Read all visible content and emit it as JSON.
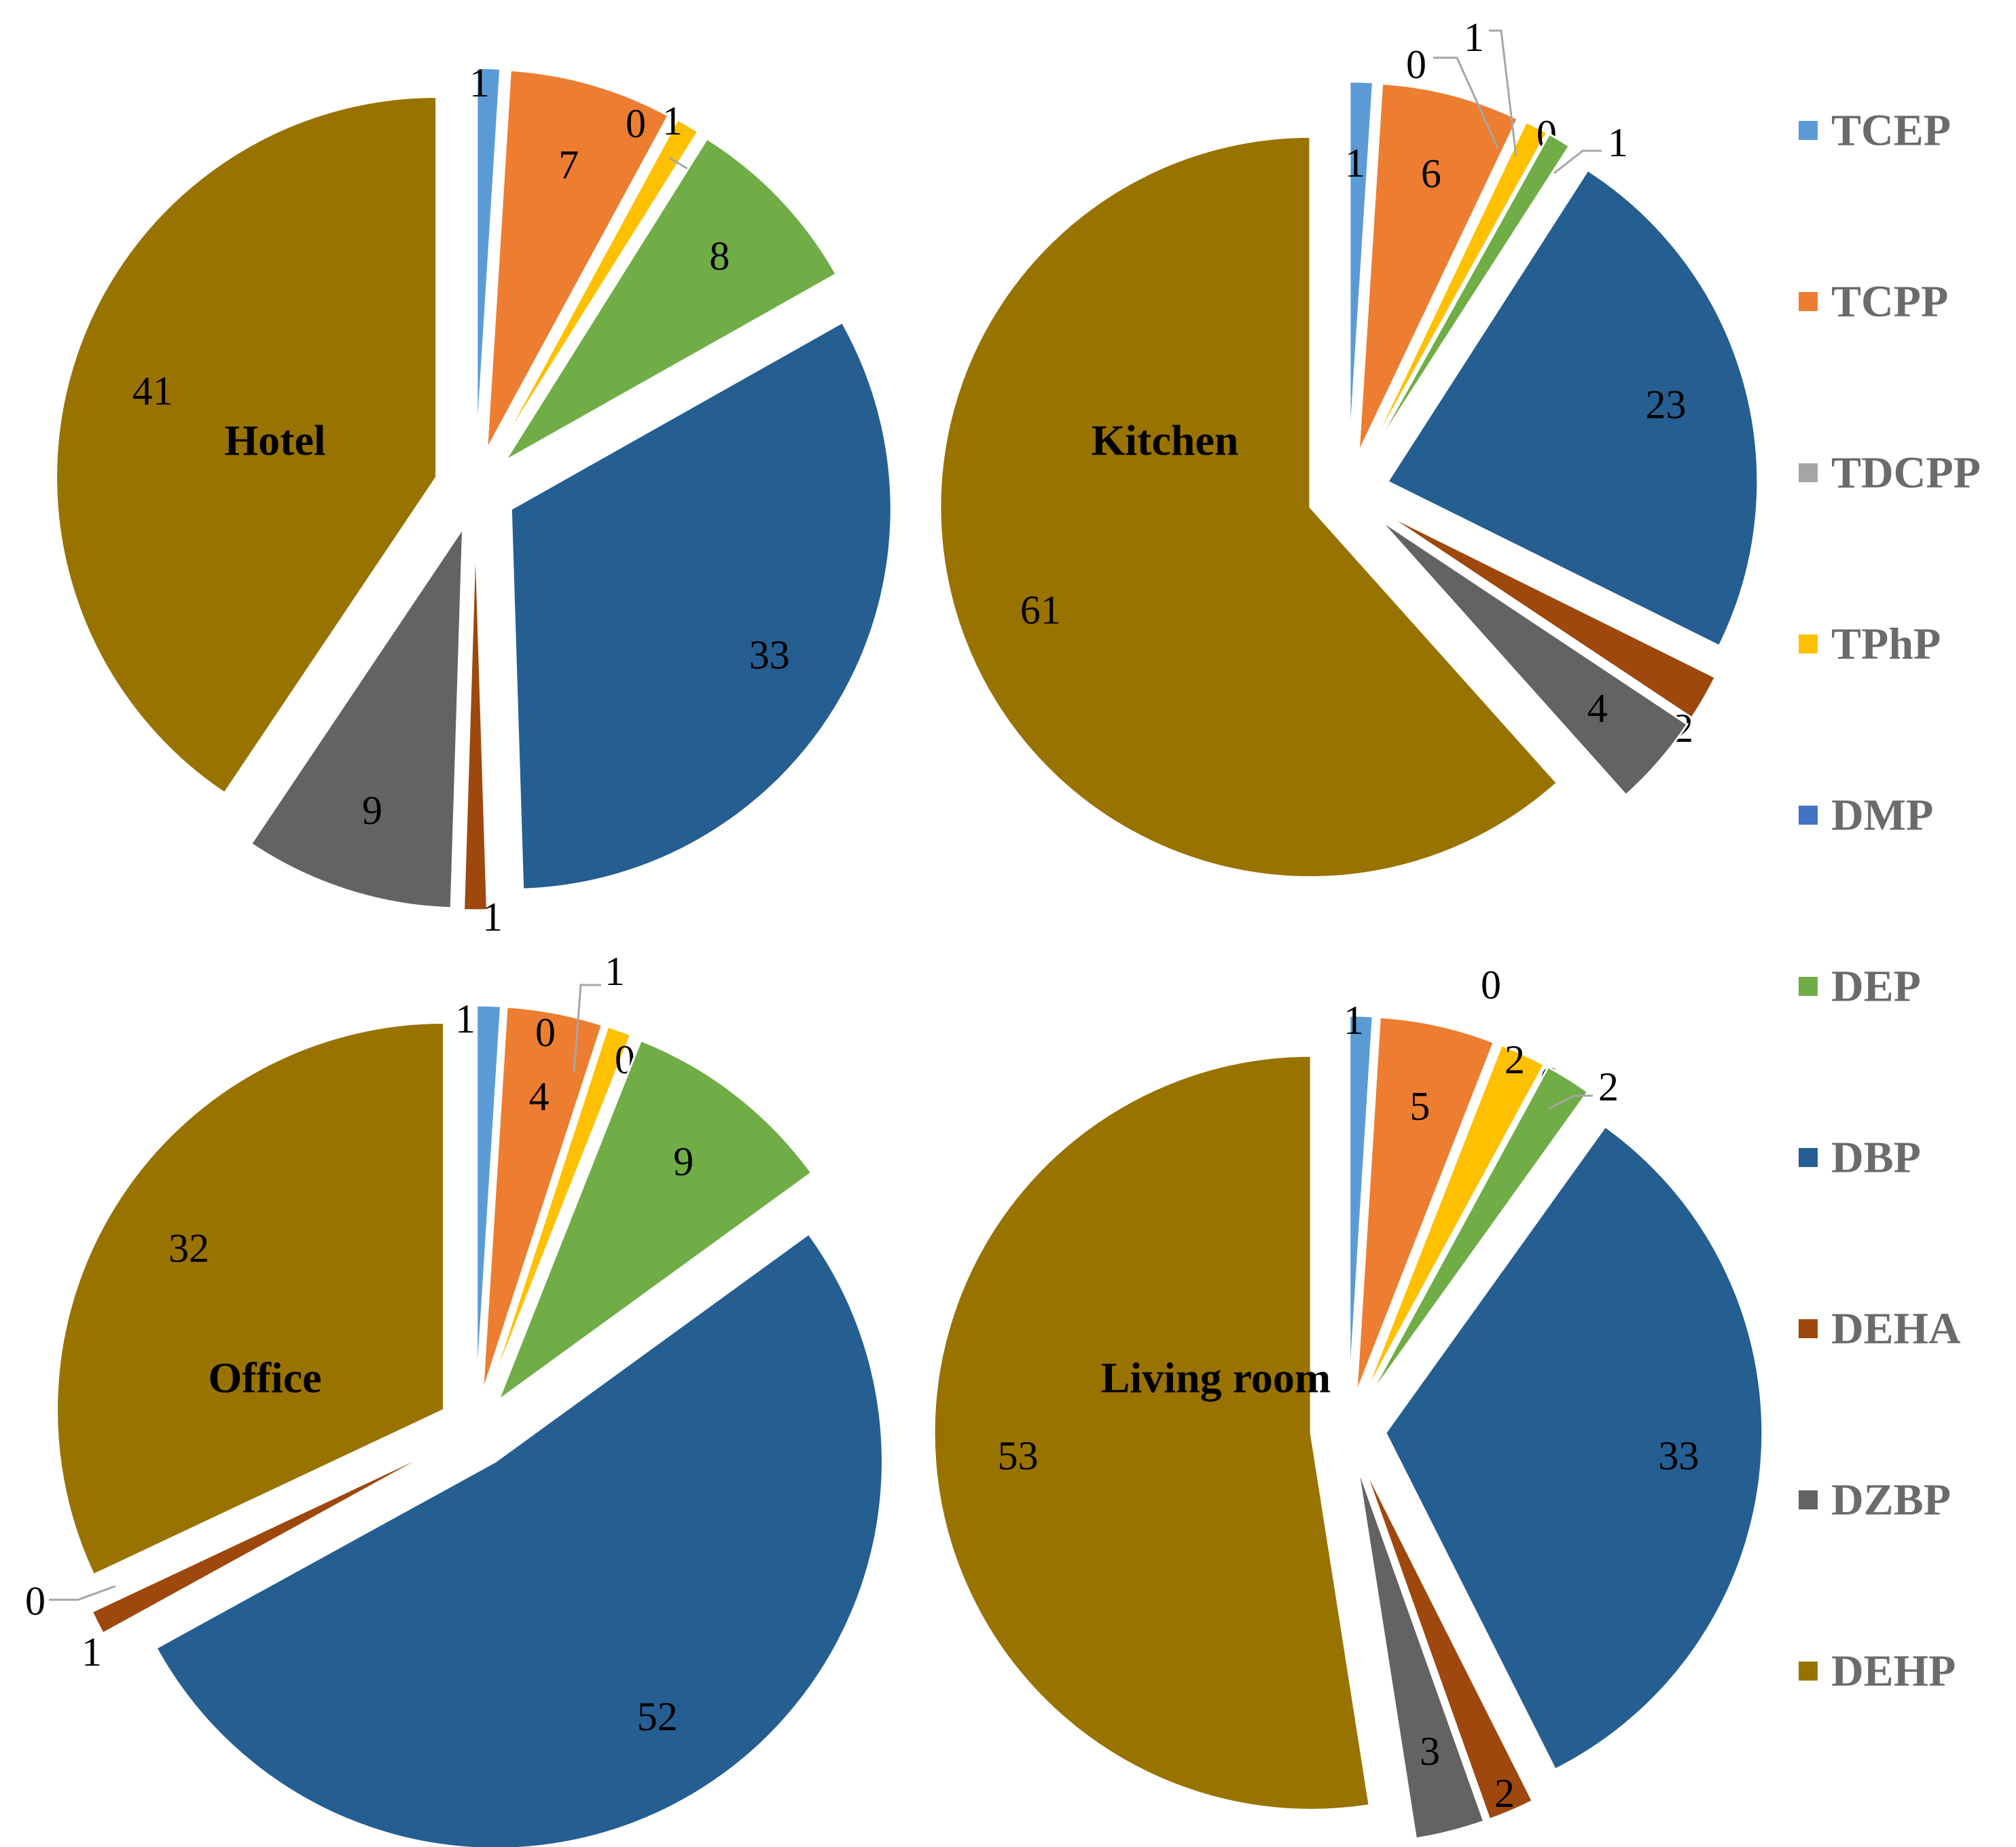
{
  "colors": {
    "TCEP": "#5b9bd5",
    "TCPP": "#ed7d31",
    "TDCPP": "#a5a5a5",
    "TPhP": "#ffc000",
    "DMP": "#4472c4",
    "DEP": "#70ad47",
    "DBP": "#255e91",
    "DEHA": "#9e480e",
    "DZBP": "#636363",
    "DEHP": "#997300"
  },
  "legend": [
    "TCEP",
    "TCPP",
    "TDCPP",
    "TPhP",
    "DMP",
    "DEP",
    "DBP",
    "DEHA",
    "DZBP",
    "DEHP"
  ],
  "chart_data": [
    {
      "type": "pie",
      "title": "Hotel",
      "slices": [
        {
          "name": "TCEP",
          "value": 1,
          "label": "1"
        },
        {
          "name": "TCPP",
          "value": 7,
          "label": "7"
        },
        {
          "name": "TDCPP",
          "value": 0,
          "label": "0"
        },
        {
          "name": "TPhP",
          "value": 1,
          "label": "1"
        },
        {
          "name": "DMP",
          "value": 0,
          "label": "0"
        },
        {
          "name": "DEP",
          "value": 8,
          "label": "8"
        },
        {
          "name": "DBP",
          "value": 33,
          "label": "33"
        },
        {
          "name": "DEHA",
          "value": 1,
          "label": "1"
        },
        {
          "name": "DZBP",
          "value": 9,
          "label": "9"
        },
        {
          "name": "DEHP",
          "value": 41,
          "label": "41"
        }
      ]
    },
    {
      "type": "pie",
      "title": "Kitchen",
      "slices": [
        {
          "name": "TCEP",
          "value": 1,
          "label": "1"
        },
        {
          "name": "TCPP",
          "value": 6,
          "label": "6"
        },
        {
          "name": "TDCPP",
          "value": 0,
          "label": "0"
        },
        {
          "name": "TPhP",
          "value": 1,
          "label": "1"
        },
        {
          "name": "DMP",
          "value": 0,
          "label": "0"
        },
        {
          "name": "DEP",
          "value": 1,
          "label": "1"
        },
        {
          "name": "DBP",
          "value": 23,
          "label": "23"
        },
        {
          "name": "DEHA",
          "value": 2,
          "label": "2"
        },
        {
          "name": "DZBP",
          "value": 4,
          "label": "4"
        },
        {
          "name": "DEHP",
          "value": 61,
          "label": "61"
        }
      ]
    },
    {
      "type": "pie",
      "title": "Office",
      "slices": [
        {
          "name": "TCEP",
          "value": 1,
          "label": "1"
        },
        {
          "name": "TCPP",
          "value": 4,
          "label": "4"
        },
        {
          "name": "TDCPP",
          "value": 0,
          "label": "0"
        },
        {
          "name": "TPhP",
          "value": 1,
          "label": "1"
        },
        {
          "name": "DMP",
          "value": 0,
          "label": "0"
        },
        {
          "name": "DEP",
          "value": 9,
          "label": "9"
        },
        {
          "name": "DBP",
          "value": 52,
          "label": "52"
        },
        {
          "name": "DEHA",
          "value": 1,
          "label": "1"
        },
        {
          "name": "DZBP",
          "value": 0,
          "label": "0"
        },
        {
          "name": "DEHP",
          "value": 32,
          "label": "32"
        }
      ]
    },
    {
      "type": "pie",
      "title": "Living room",
      "slices": [
        {
          "name": "TCEP",
          "value": 1,
          "label": "1"
        },
        {
          "name": "TCPP",
          "value": 5,
          "label": "5"
        },
        {
          "name": "TDCPP",
          "value": 0,
          "label": "0"
        },
        {
          "name": "TPhP",
          "value": 2,
          "label": "2"
        },
        {
          "name": "DMP",
          "value": 0,
          "label": "0"
        },
        {
          "name": "DEP",
          "value": 2,
          "label": "2"
        },
        {
          "name": "DBP",
          "value": 33,
          "label": "33"
        },
        {
          "name": "DEHA",
          "value": 2,
          "label": "2"
        },
        {
          "name": "DZBP",
          "value": 3,
          "label": "3"
        },
        {
          "name": "DEHP",
          "value": 53,
          "label": "53"
        }
      ]
    }
  ]
}
